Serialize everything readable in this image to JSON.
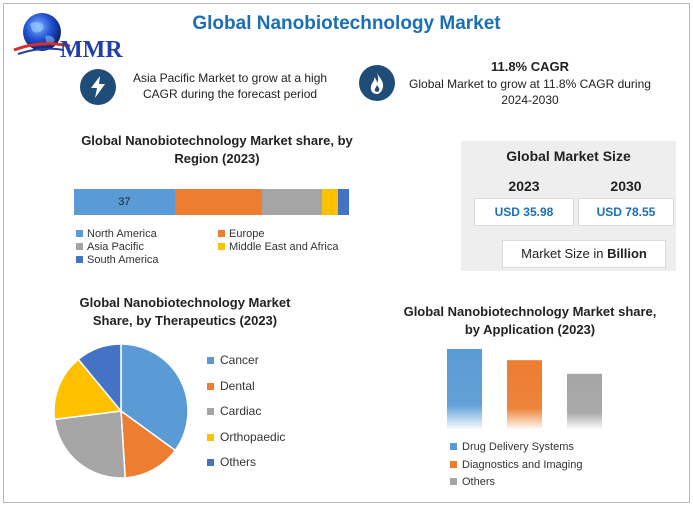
{
  "header": {
    "title": "Global Nanobiotechnology Market",
    "logo_text": "MMR"
  },
  "highlights": [
    {
      "icon": "lightning-icon",
      "text": "Asia Pacific Market to grow at a high CAGR during the forecast period"
    },
    {
      "icon": "flame-icon",
      "headline": "11.8% CAGR",
      "text": "Global Market to grow at 11.8% CAGR during 2024-2030"
    }
  ],
  "market_size": {
    "title": "Global Market Size",
    "years": [
      "2023",
      "2030"
    ],
    "values": [
      "USD 35.98",
      "USD 78.55"
    ],
    "unit_prefix": "Market Size in ",
    "unit_bold": "Billion"
  },
  "colors": {
    "blue": "#5b9bd5",
    "orange": "#ed7d31",
    "gray": "#a5a5a5",
    "yellow": "#ffc000",
    "dark_blue": "#4472c4",
    "title_blue": "#1a6fb5",
    "icon_navy": "#1f4d78"
  },
  "chart_data": [
    {
      "type": "bar",
      "orientation": "horizontal-stacked",
      "title": "Global Nanobiotechnology Market share, by Region (2023)",
      "categories": [
        "North America",
        "Europe",
        "Asia Pacific",
        "Middle East and Africa",
        "South America"
      ],
      "values": [
        37,
        32,
        22,
        6,
        4
      ],
      "data_labels": [
        "37",
        "",
        "",
        "",
        ""
      ],
      "colors": [
        "#5b9bd5",
        "#ed7d31",
        "#a5a5a5",
        "#ffc000",
        "#4472c4"
      ],
      "legend_position": "bottom"
    },
    {
      "type": "pie",
      "title": "Global Nanobiotechnology Market Share, by Therapeutics (2023)",
      "categories": [
        "Cancer",
        "Dental",
        "Cardiac",
        "Orthopaedic",
        "Others"
      ],
      "values": [
        35,
        14,
        24,
        16,
        11
      ],
      "colors": [
        "#5b9bd5",
        "#ed7d31",
        "#a5a5a5",
        "#ffc000",
        "#4472c4"
      ],
      "legend_position": "right"
    },
    {
      "type": "bar",
      "title": "Global Nanobiotechnology Market share, by Application (2023)",
      "categories": [
        "Drug Delivery Systems",
        "Diagnostics and Imaging",
        "Others"
      ],
      "values": [
        100,
        86,
        69
      ],
      "colors": [
        "#5b9bd5",
        "#ed7d31",
        "#a5a5a5"
      ],
      "legend_position": "bottom"
    }
  ]
}
